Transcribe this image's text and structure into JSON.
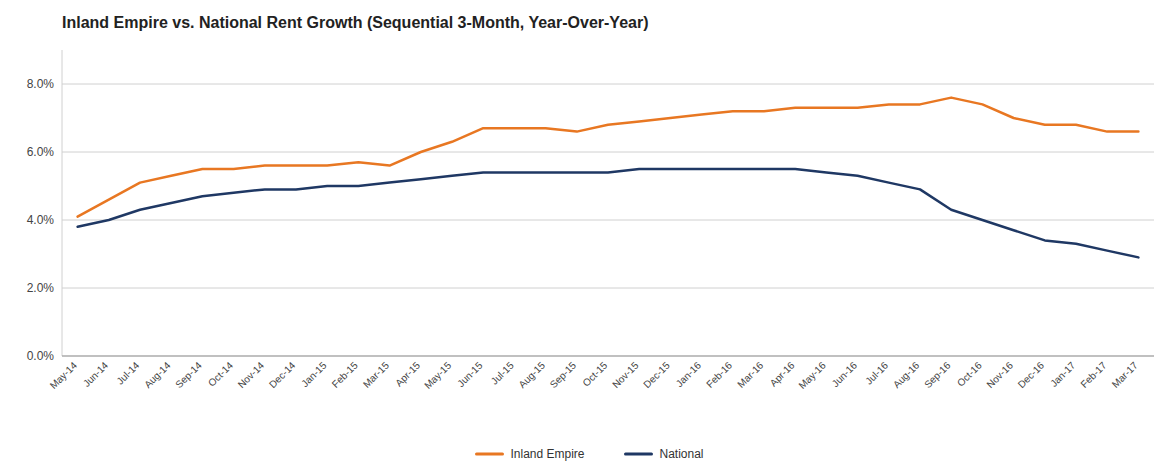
{
  "chart_data": {
    "type": "line",
    "title": "Inland Empire vs. National Rent Growth (Sequential 3-Month, Year-Over-Year)",
    "categories": [
      "May-14",
      "Jun-14",
      "Jul-14",
      "Aug-14",
      "Sep-14",
      "Oct-14",
      "Nov-14",
      "Dec-14",
      "Jan-15",
      "Feb-15",
      "Mar-15",
      "Apr-15",
      "May-15",
      "Jun-15",
      "Jul-15",
      "Aug-15",
      "Sep-15",
      "Oct-15",
      "Nov-15",
      "Dec-15",
      "Jan-16",
      "Feb-16",
      "Mar-16",
      "Apr-16",
      "May-16",
      "Jun-16",
      "Jul-16",
      "Aug-16",
      "Sep-16",
      "Oct-16",
      "Nov-16",
      "Dec-16",
      "Jan-17",
      "Feb-17",
      "Mar-17"
    ],
    "series": [
      {
        "name": "Inland Empire",
        "color": "#E87722",
        "values": [
          0.041,
          0.046,
          0.051,
          0.053,
          0.055,
          0.055,
          0.056,
          0.056,
          0.056,
          0.057,
          0.056,
          0.06,
          0.063,
          0.067,
          0.067,
          0.067,
          0.066,
          0.068,
          0.069,
          0.07,
          0.071,
          0.072,
          0.072,
          0.073,
          0.073,
          0.073,
          0.074,
          0.074,
          0.076,
          0.074,
          0.07,
          0.068,
          0.068,
          0.066,
          0.066
        ]
      },
      {
        "name": "National",
        "color": "#1F3864",
        "values": [
          0.038,
          0.04,
          0.043,
          0.045,
          0.047,
          0.048,
          0.049,
          0.049,
          0.05,
          0.05,
          0.051,
          0.052,
          0.053,
          0.054,
          0.054,
          0.054,
          0.054,
          0.054,
          0.055,
          0.055,
          0.055,
          0.055,
          0.055,
          0.055,
          0.054,
          0.053,
          0.051,
          0.049,
          0.043,
          0.04,
          0.037,
          0.034,
          0.033,
          0.031,
          0.029
        ]
      }
    ],
    "ylim": [
      0.0,
      0.09
    ],
    "yticks": [
      {
        "value": 0.0,
        "label": "0.0%"
      },
      {
        "value": 0.02,
        "label": "2.0%"
      },
      {
        "value": 0.04,
        "label": "4.0%"
      },
      {
        "value": 0.06,
        "label": "6.0%"
      },
      {
        "value": 0.08,
        "label": "8.0%"
      }
    ],
    "grid": true,
    "legend": "bottom"
  }
}
